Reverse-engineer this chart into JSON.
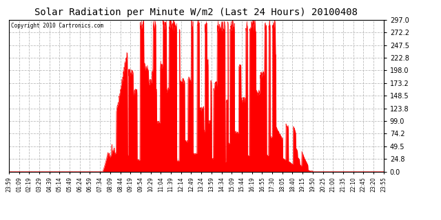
{
  "title": "Solar Radiation per Minute W/m2 (Last 24 Hours) 20100408",
  "copyright_text": "Copyright 2010 Cartronics.com",
  "y_ticks": [
    0.0,
    24.8,
    49.5,
    74.2,
    99.0,
    123.8,
    148.5,
    173.2,
    198.0,
    222.8,
    247.5,
    272.2,
    297.0
  ],
  "ymax": 297.0,
  "ymin": 0.0,
  "fill_color": "#FF0000",
  "line_color": "#FF0000",
  "bg_color": "#FFFFFF",
  "grid_color": "#AAAAAA",
  "grid_color_h": "#CCCCCC",
  "baseline_color": "#FF0000",
  "x_labels": [
    "23:59",
    "01:09",
    "02:19",
    "03:29",
    "04:39",
    "05:14",
    "05:49",
    "06:24",
    "06:59",
    "07:34",
    "08:09",
    "08:44",
    "09:19",
    "09:54",
    "10:29",
    "11:04",
    "11:39",
    "12:14",
    "12:49",
    "13:24",
    "13:59",
    "14:34",
    "15:09",
    "15:44",
    "16:19",
    "16:55",
    "17:30",
    "18:05",
    "18:40",
    "19:15",
    "19:50",
    "20:25",
    "21:00",
    "21:35",
    "22:10",
    "22:45",
    "23:20",
    "23:55"
  ]
}
